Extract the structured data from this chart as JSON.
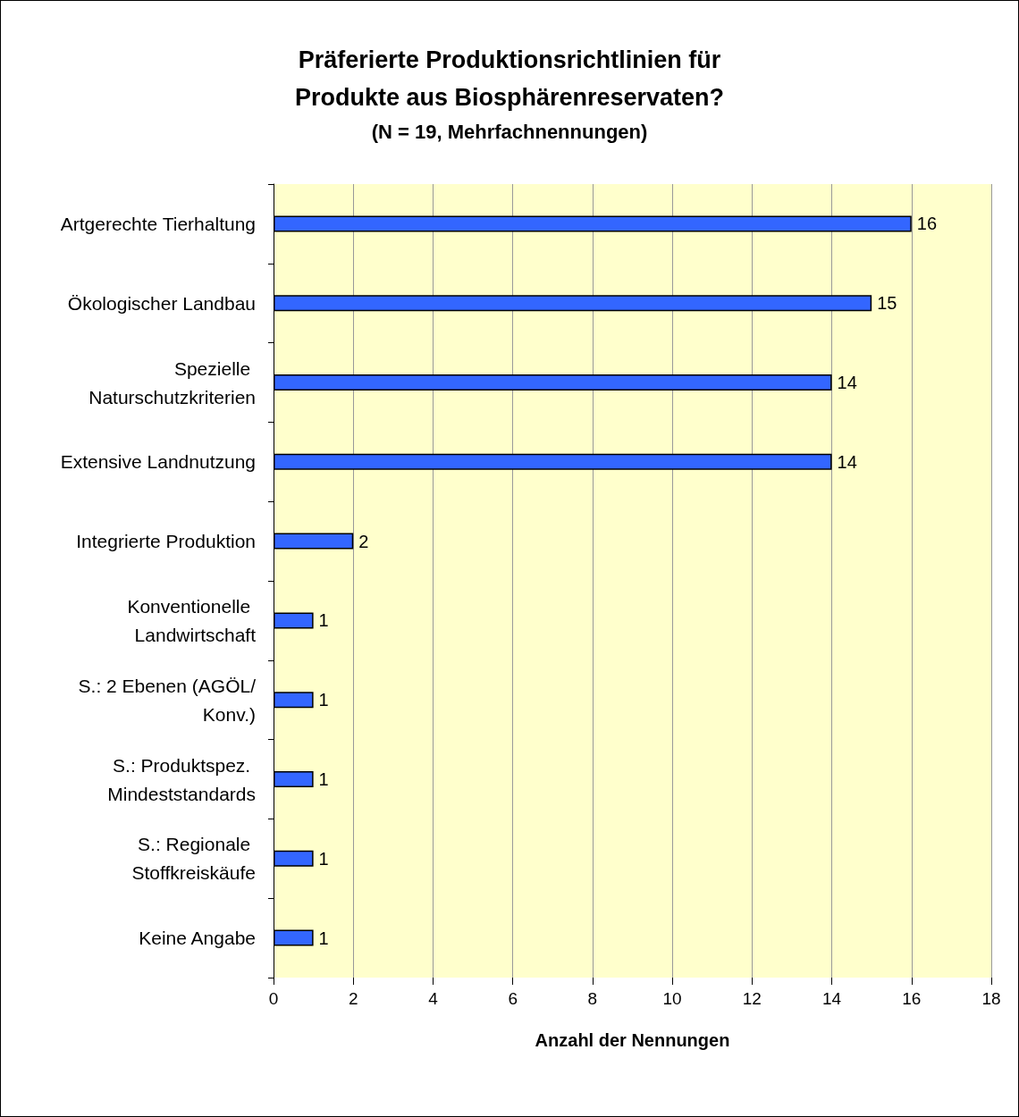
{
  "chart_data": {
    "type": "bar",
    "orientation": "horizontal",
    "title": "Präferierte Produktionsrichtlinien für\nProdukte aus Biosphärenreservaten?",
    "subtitle": "(N = 19, Mehrfachnennungen)",
    "xlabel": "Anzahl der Nennungen",
    "categories": [
      "Artgerechte Tierhaltung",
      "Ökologischer Landbau",
      "Spezielle Naturschutzkriterien",
      "Extensive Landnutzung",
      "Integrierte Produktion",
      "Konventionelle Landwirtschaft",
      "S.: 2 Ebenen (AGÖL/Konv.)",
      "S.: Produktspez. Mindeststandards",
      "S.: Regionale Stoffkreiskäufe",
      "Keine Angabe"
    ],
    "values": [
      16,
      15,
      14,
      14,
      2,
      1,
      1,
      1,
      1,
      1
    ],
    "color": "#3366ff",
    "xlim": [
      0,
      18
    ],
    "xticks": [
      0,
      2,
      4,
      6,
      8,
      10,
      12,
      14,
      16,
      18
    ],
    "grid": "x",
    "data_labels": true
  }
}
